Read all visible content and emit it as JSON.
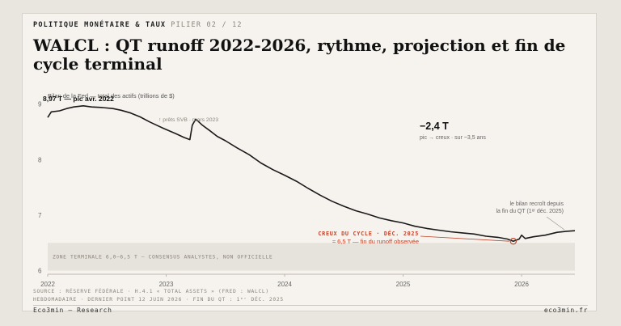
{
  "header": {
    "kicker": "POLITIQUE MONÉTAIRE & TAUX",
    "pillar": "PILIER 02 / 12",
    "title": "WALCL : QT runoff 2022-2026, rythme, projection et fin de cycle terminal"
  },
  "colors": {
    "line": "#1a1a1a",
    "accent": "#c0432a",
    "zone": "#e6e2dc",
    "text_muted": "#8a857c"
  },
  "chart_data": {
    "type": "line",
    "ylabel": "Bilan de la Fed — total des actifs (trillions de $)",
    "xlim": [
      2022.0,
      2026.45
    ],
    "ylim": [
      5.95,
      9.2
    ],
    "yticks": [
      6,
      7,
      8,
      9
    ],
    "xticks": [
      2022,
      2023,
      2024,
      2025,
      2026
    ],
    "grid": false,
    "series": [
      {
        "values": [
          [
            2022.0,
            8.76
          ],
          [
            2022.03,
            8.86
          ],
          [
            2022.1,
            8.88
          ],
          [
            2022.16,
            8.92
          ],
          [
            2022.22,
            8.95
          ],
          [
            2022.3,
            8.97
          ],
          [
            2022.37,
            8.95
          ],
          [
            2022.45,
            8.94
          ],
          [
            2022.55,
            8.92
          ],
          [
            2022.62,
            8.89
          ],
          [
            2022.7,
            8.84
          ],
          [
            2022.78,
            8.77
          ],
          [
            2022.86,
            8.68
          ],
          [
            2022.92,
            8.62
          ],
          [
            2022.98,
            8.56
          ],
          [
            2023.08,
            8.47
          ],
          [
            2023.15,
            8.4
          ],
          [
            2023.2,
            8.36
          ],
          [
            2023.22,
            8.62
          ],
          [
            2023.25,
            8.73
          ],
          [
            2023.3,
            8.63
          ],
          [
            2023.37,
            8.52
          ],
          [
            2023.43,
            8.42
          ],
          [
            2023.5,
            8.34
          ],
          [
            2023.6,
            8.21
          ],
          [
            2023.7,
            8.09
          ],
          [
            2023.8,
            7.94
          ],
          [
            2023.9,
            7.82
          ],
          [
            2024.0,
            7.72
          ],
          [
            2024.1,
            7.61
          ],
          [
            2024.2,
            7.48
          ],
          [
            2024.3,
            7.36
          ],
          [
            2024.4,
            7.25
          ],
          [
            2024.5,
            7.16
          ],
          [
            2024.6,
            7.08
          ],
          [
            2024.7,
            7.02
          ],
          [
            2024.8,
            6.95
          ],
          [
            2024.9,
            6.9
          ],
          [
            2025.0,
            6.86
          ],
          [
            2025.1,
            6.8
          ],
          [
            2025.2,
            6.76
          ],
          [
            2025.3,
            6.73
          ],
          [
            2025.4,
            6.7
          ],
          [
            2025.5,
            6.68
          ],
          [
            2025.6,
            6.66
          ],
          [
            2025.7,
            6.62
          ],
          [
            2025.8,
            6.6
          ],
          [
            2025.88,
            6.57
          ],
          [
            2025.93,
            6.53
          ],
          [
            2025.98,
            6.57
          ],
          [
            2026.0,
            6.64
          ],
          [
            2026.03,
            6.58
          ],
          [
            2026.1,
            6.61
          ],
          [
            2026.2,
            6.64
          ],
          [
            2026.3,
            6.69
          ],
          [
            2026.38,
            6.71
          ],
          [
            2026.45,
            6.72
          ]
        ]
      }
    ],
    "terminal_zone": {
      "y": [
        6.0,
        6.5
      ],
      "label": "ZONE TERMINALE 6,0–6,5 T — CONSENSUS ANALYSTES, NON OFFICIELLE"
    },
    "annotations": {
      "peak": {
        "x": 2022.3,
        "y": 8.97,
        "text": "8,97 T — pic avr. 2022"
      },
      "svb": {
        "text": "↑ prêts SVB · mars 2023"
      },
      "delta_value": "−2,4 T",
      "delta_desc": "pic → creux · sur ~3,5 ans",
      "trough": {
        "x": 2025.93,
        "y": 6.53,
        "label1": "CREUX DU CYCLE · DÉC. 2025",
        "label2": "≈ 6,5 T — fin du runoff observée"
      },
      "regrowth": {
        "line1": "le bilan recroît depuis",
        "line2": "la fin du QT (1ᵉʳ déc. 2025)"
      }
    }
  },
  "footer": {
    "source1": "SOURCE : RÉSERVE FÉDÉRALE · H.4.1 « TOTAL ASSETS » (FRED : WALCL)",
    "source2": "HEBDOMADAIRE · DERNIER POINT 12 JUIN 2026 · FIN DU QT : 1ᵉʳ DÉC. 2025",
    "brand": "Eco3min — Research",
    "url": "eco3min.fr"
  }
}
